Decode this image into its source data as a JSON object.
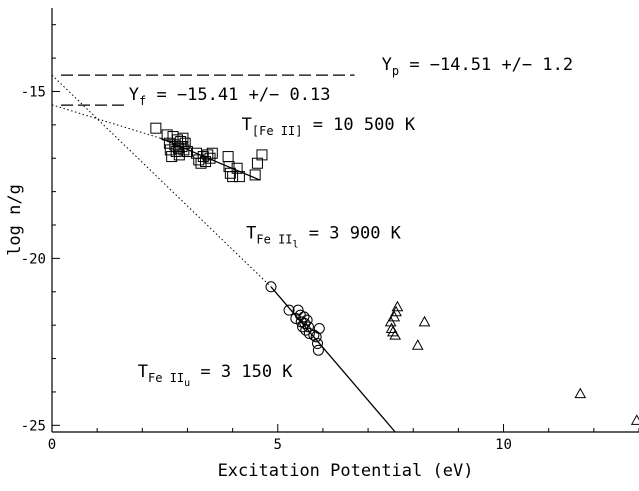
{
  "chart_data": {
    "type": "scatter",
    "title": "",
    "xlabel": "Excitation Potential (eV)",
    "ylabel": "log n/g",
    "xlim": [
      0,
      13
    ],
    "ylim": [
      -25.2,
      -12.5
    ],
    "x_ticks": [
      0,
      5,
      10
    ],
    "x_tick_labels": [
      "0",
      "5",
      "10"
    ],
    "y_ticks": [
      -15,
      -20,
      -25
    ],
    "y_tick_labels": [
      "-15",
      "-20",
      "-25"
    ],
    "grid": false,
    "legend": "none",
    "series": [
      {
        "marker": "square",
        "points": [
          [
            2.3,
            -16.1
          ],
          [
            2.55,
            -16.3
          ],
          [
            2.6,
            -16.55
          ],
          [
            2.62,
            -16.75
          ],
          [
            2.65,
            -16.95
          ],
          [
            2.68,
            -16.35
          ],
          [
            2.72,
            -16.6
          ],
          [
            2.75,
            -16.8
          ],
          [
            2.78,
            -16.45
          ],
          [
            2.8,
            -16.7
          ],
          [
            2.82,
            -16.9
          ],
          [
            2.85,
            -16.5
          ],
          [
            2.88,
            -16.65
          ],
          [
            2.9,
            -16.4
          ],
          [
            2.92,
            -16.75
          ],
          [
            2.95,
            -16.55
          ],
          [
            3.0,
            -16.8
          ],
          [
            3.2,
            -16.85
          ],
          [
            3.25,
            -17.05
          ],
          [
            3.3,
            -17.15
          ],
          [
            3.35,
            -16.95
          ],
          [
            3.4,
            -17.1
          ],
          [
            3.45,
            -16.9
          ],
          [
            3.5,
            -17.0
          ],
          [
            3.55,
            -16.85
          ],
          [
            3.9,
            -16.95
          ],
          [
            3.92,
            -17.25
          ],
          [
            3.95,
            -17.45
          ],
          [
            4.0,
            -17.55
          ],
          [
            4.1,
            -17.3
          ],
          [
            4.15,
            -17.55
          ],
          [
            4.5,
            -17.5
          ],
          [
            4.65,
            -16.9
          ],
          [
            4.55,
            -17.15
          ]
        ]
      },
      {
        "marker": "circle",
        "points": [
          [
            4.85,
            -20.85
          ],
          [
            5.25,
            -21.55
          ],
          [
            5.4,
            -21.8
          ],
          [
            5.45,
            -21.55
          ],
          [
            5.5,
            -21.7
          ],
          [
            5.52,
            -21.9
          ],
          [
            5.55,
            -22.05
          ],
          [
            5.58,
            -21.75
          ],
          [
            5.6,
            -21.95
          ],
          [
            5.62,
            -22.15
          ],
          [
            5.65,
            -21.85
          ],
          [
            5.68,
            -22.05
          ],
          [
            5.7,
            -22.25
          ],
          [
            5.85,
            -22.35
          ],
          [
            5.88,
            -22.55
          ],
          [
            5.9,
            -22.75
          ],
          [
            5.92,
            -22.1
          ],
          [
            5.8,
            -22.3
          ]
        ]
      },
      {
        "marker": "triangle",
        "points": [
          [
            7.5,
            -21.9
          ],
          [
            7.52,
            -22.1
          ],
          [
            7.55,
            -22.2
          ],
          [
            7.58,
            -21.75
          ],
          [
            7.6,
            -22.3
          ],
          [
            7.62,
            -21.6
          ],
          [
            7.65,
            -21.45
          ],
          [
            8.1,
            -22.6
          ],
          [
            8.25,
            -21.9
          ],
          [
            11.7,
            -24.05
          ],
          [
            12.95,
            -24.85
          ]
        ]
      }
    ],
    "fit_lines": [
      {
        "style": "solid",
        "x": [
          2.4,
          4.6
        ],
        "y": [
          -16.4,
          -17.65
        ]
      },
      {
        "style": "solid",
        "x": [
          4.85,
          7.6
        ],
        "y": [
          -20.85,
          -25.2
        ]
      },
      {
        "style": "dotted",
        "x": [
          0.0,
          2.4
        ],
        "y": [
          -15.4,
          -16.4
        ]
      },
      {
        "style": "dotted",
        "x": [
          0.0,
          4.85
        ],
        "y": [
          -14.51,
          -20.85
        ]
      }
    ],
    "h_lines": [
      {
        "style": "dashed",
        "y": -14.51,
        "x": [
          0.2,
          6.7
        ]
      },
      {
        "style": "dashed",
        "y": -15.41,
        "x": [
          0.2,
          1.6
        ]
      }
    ],
    "annotations": [
      {
        "id": "yp",
        "main": "Y",
        "sub": "p",
        "rest": " = −14.51 +/− 1.2",
        "x": 7.3,
        "y": -14.35
      },
      {
        "id": "yf",
        "main": "Y",
        "sub": "f",
        "rest": " = −15.41 +/− 0.13",
        "x": 1.7,
        "y": -15.25
      },
      {
        "id": "tfe2forb",
        "main": "T",
        "sub": "[Fe II]",
        "rest": " = 10 500 K",
        "x": 4.2,
        "y": -16.15
      },
      {
        "id": "tfe2l",
        "main": "T",
        "sub": "Fe II",
        "subsub": "l",
        "rest": " = 3 900 K",
        "x": 4.3,
        "y": -19.4
      },
      {
        "id": "tfe2u",
        "main": "T",
        "sub": "Fe II",
        "subsub": "u",
        "rest": " = 3 150 K",
        "x": 1.9,
        "y": -23.55
      }
    ]
  }
}
